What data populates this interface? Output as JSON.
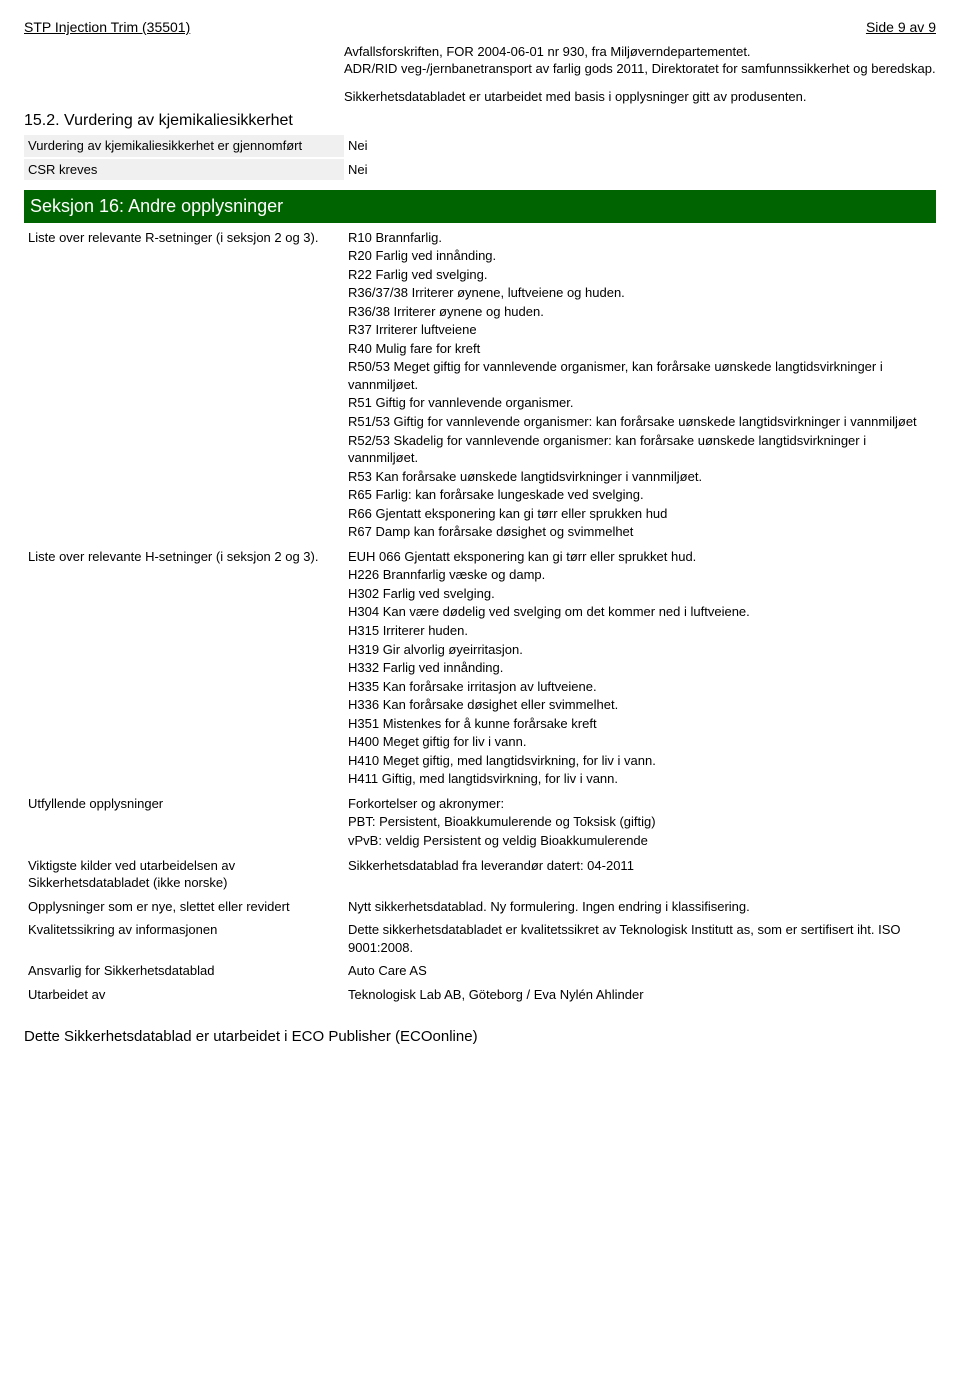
{
  "header": {
    "title_left": "STP Injection Trim (35501)",
    "title_right": "Side 9 av 9"
  },
  "refs": {
    "line1": "Avfallsforskriften, FOR 2004-06-01 nr 930, fra Miljøverndepartementet.",
    "line2": "ADR/RID veg-/jernbanetransport av farlig gods 2011, Direktoratet for samfunnssikkerhet og beredskap."
  },
  "basis": "Sikkerhetsdatabladet er utarbeidet med basis i opplysninger gitt av produsenten.",
  "section152": {
    "title": "15.2. Vurdering av kjemikaliesikkerhet",
    "rows": [
      {
        "label": "Vurdering av kjemikaliesikkerhet er gjennomført",
        "val": "Nei"
      },
      {
        "label": "CSR kreves",
        "val": "Nei"
      }
    ]
  },
  "section16": {
    "title": "Seksjon 16: Andre opplysninger",
    "r_label": "Liste over relevante R-setninger (i seksjon 2 og 3).",
    "r_lines": [
      "R10 Brannfarlig.",
      "R20 Farlig ved innånding.",
      "R22 Farlig ved svelging.",
      "R36/37/38 Irriterer øynene, luftveiene og huden.",
      "R36/38 Irriterer øynene og huden.",
      "R37 Irriterer luftveiene",
      "R40 Mulig fare for kreft",
      "R50/53 Meget giftig for vannlevende organismer, kan forårsake uønskede langtidsvirkninger i vannmiljøet.",
      "R51 Giftig for vannlevende organismer.",
      "R51/53 Giftig for vannlevende organismer: kan forårsake uønskede langtidsvirkninger i vannmiljøet",
      "R52/53 Skadelig for vannlevende organismer: kan forårsake uønskede langtidsvirkninger i vannmiljøet.",
      "R53 Kan forårsake uønskede langtidsvirkninger i vannmiljøet.",
      "R65 Farlig: kan forårsake lungeskade ved svelging.",
      "R66 Gjentatt eksponering kan gi tørr eller sprukken hud",
      "R67 Damp kan forårsake døsighet og svimmelhet"
    ],
    "h_label": "Liste over relevante H-setninger (i seksjon 2 og 3).",
    "h_lines": [
      "EUH 066 Gjentatt eksponering kan gi tørr eller sprukket hud.",
      "H226 Brannfarlig væske og damp.",
      "H302 Farlig ved svelging.",
      "H304 Kan være dødelig ved svelging om det kommer ned i luftveiene.",
      "H315 Irriterer huden.",
      "H319 Gir alvorlig øyeirritasjon.",
      "H332 Farlig ved innånding.",
      "H335 Kan forårsake irritasjon av luftveiene.",
      "H336 Kan forårsake døsighet eller svimmelhet.",
      "H351 Mistenkes for å kunne forårsake kreft",
      "H400 Meget giftig for liv i vann.",
      "H410 Meget giftig, med langtidsvirkning, for liv i vann.",
      "H411 Giftig, med langtidsvirkning, for liv i vann."
    ],
    "utf_label": "Utfyllende opplysninger",
    "utf_lines": [
      "Forkortelser og akronymer:",
      "PBT: Persistent, Bioakkumulerende og Toksisk (giftig)",
      "vPvB: veldig Persistent og veldig Bioakkumulerende"
    ],
    "rows": [
      {
        "label": "Viktigste kilder ved utarbeidelsen av Sikkerhetsdatabladet (ikke norske)",
        "val": "Sikkerhetsdatablad fra leverandør datert: 04-2011"
      },
      {
        "label": "Opplysninger som er nye, slettet eller revidert",
        "val": "Nytt sikkerhetsdatablad. Ny formulering. Ingen endring i klassifisering."
      },
      {
        "label": "Kvalitetssikring av informasjonen",
        "val": "Dette sikkerhetsdatabladet er kvalitetssikret av Teknologisk Institutt as, som er sertifisert iht. ISO 9001:2008."
      },
      {
        "label": "Ansvarlig for Sikkerhetsdatablad",
        "val": "Auto Care AS"
      },
      {
        "label": "Utarbeidet av",
        "val": "Teknologisk Lab AB, Göteborg / Eva Nylén Ahlinder"
      }
    ]
  },
  "footer": "Dette Sikkerhetsdatablad er utarbeidet i ECO Publisher (ECOonline)"
}
